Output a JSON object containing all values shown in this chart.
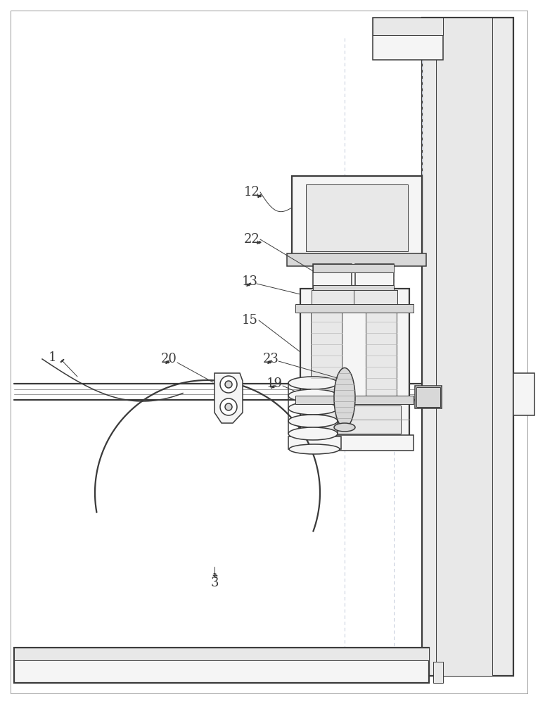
{
  "bg_color": "#ffffff",
  "line_color": "#3a3a3a",
  "dashed_color": "#c0c8d8",
  "label_color": "#1a1a1a",
  "figsize": [
    7.65,
    10.0
  ],
  "dpi": 100,
  "lw_thin": 0.7,
  "lw_med": 1.1,
  "lw_thk": 1.6,
  "fc_light": "#f5f5f5",
  "fc_mid": "#e8e8e8",
  "fc_dark": "#d8d8d8",
  "fc_wall": "#ebebeb"
}
